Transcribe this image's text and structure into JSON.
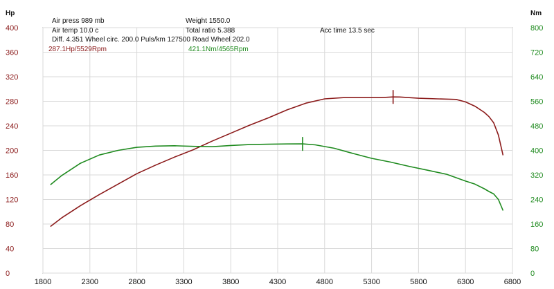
{
  "chart_data": {
    "type": "line",
    "x_range": [
      1800,
      6800
    ],
    "x_ticks": [
      1800,
      2300,
      2800,
      3300,
      3800,
      4300,
      4800,
      5300,
      5800,
      6300,
      6800
    ],
    "y_left": {
      "unit": "Hp",
      "range": [
        0,
        400
      ],
      "ticks": [
        0,
        40,
        80,
        120,
        160,
        200,
        240,
        280,
        320,
        360,
        400
      ],
      "color": "#8b1a1a"
    },
    "y_right": {
      "unit": "Nm",
      "range": [
        0,
        800
      ],
      "ticks": [
        0,
        80,
        160,
        240,
        320,
        400,
        480,
        560,
        640,
        720,
        800
      ],
      "color": "#1e8a1e"
    },
    "grid": true,
    "info": {
      "air_press": "Air press   989 mb",
      "air_temp": "Air temp   10.0 c",
      "diff": "Diff.    4.351   Wheel circ. 200.0   Puls/km  127500   Road Wheel  202.0",
      "weight": "Weight   1550.0",
      "total_ratio": "Total ratio 5.388",
      "acc_time": "Acc time   13.5 sec"
    },
    "series": [
      {
        "axis": "left",
        "color": "#8b1a1a",
        "peak_label": "287.1Hp/5529Rpm",
        "peak_x": 5529,
        "peak_y": 287.1,
        "x": [
          1880,
          2000,
          2200,
          2400,
          2600,
          2800,
          3000,
          3200,
          3400,
          3600,
          3800,
          4000,
          4200,
          4400,
          4600,
          4800,
          5000,
          5200,
          5400,
          5529,
          5600,
          5800,
          6000,
          6200,
          6300,
          6400,
          6500,
          6550,
          6600,
          6650,
          6700
        ],
        "y": [
          76,
          90,
          110,
          128,
          145,
          162,
          176,
          189,
          201,
          215,
          228,
          241,
          253,
          266,
          277,
          284,
          286,
          286,
          286,
          287.1,
          287,
          285,
          284,
          283,
          279,
          272,
          262,
          255,
          245,
          225,
          192
        ]
      },
      {
        "axis": "right",
        "color": "#1e8a1e",
        "peak_label": "421.1Nm/4565Rpm",
        "peak_x": 4565,
        "peak_y": 421.1,
        "x": [
          1880,
          2000,
          2200,
          2400,
          2600,
          2800,
          3000,
          3200,
          3400,
          3600,
          3800,
          4000,
          4200,
          4400,
          4565,
          4700,
          4900,
          5100,
          5300,
          5500,
          5700,
          5900,
          6100,
          6300,
          6400,
          6500,
          6550,
          6600,
          6650,
          6700
        ],
        "y": [
          288,
          318,
          358,
          385,
          400,
          410,
          414,
          415,
          413,
          412,
          416,
          419,
          420,
          421,
          421.1,
          418,
          407,
          390,
          374,
          362,
          348,
          335,
          322,
          300,
          290,
          275,
          266,
          258,
          240,
          204
        ]
      }
    ]
  }
}
